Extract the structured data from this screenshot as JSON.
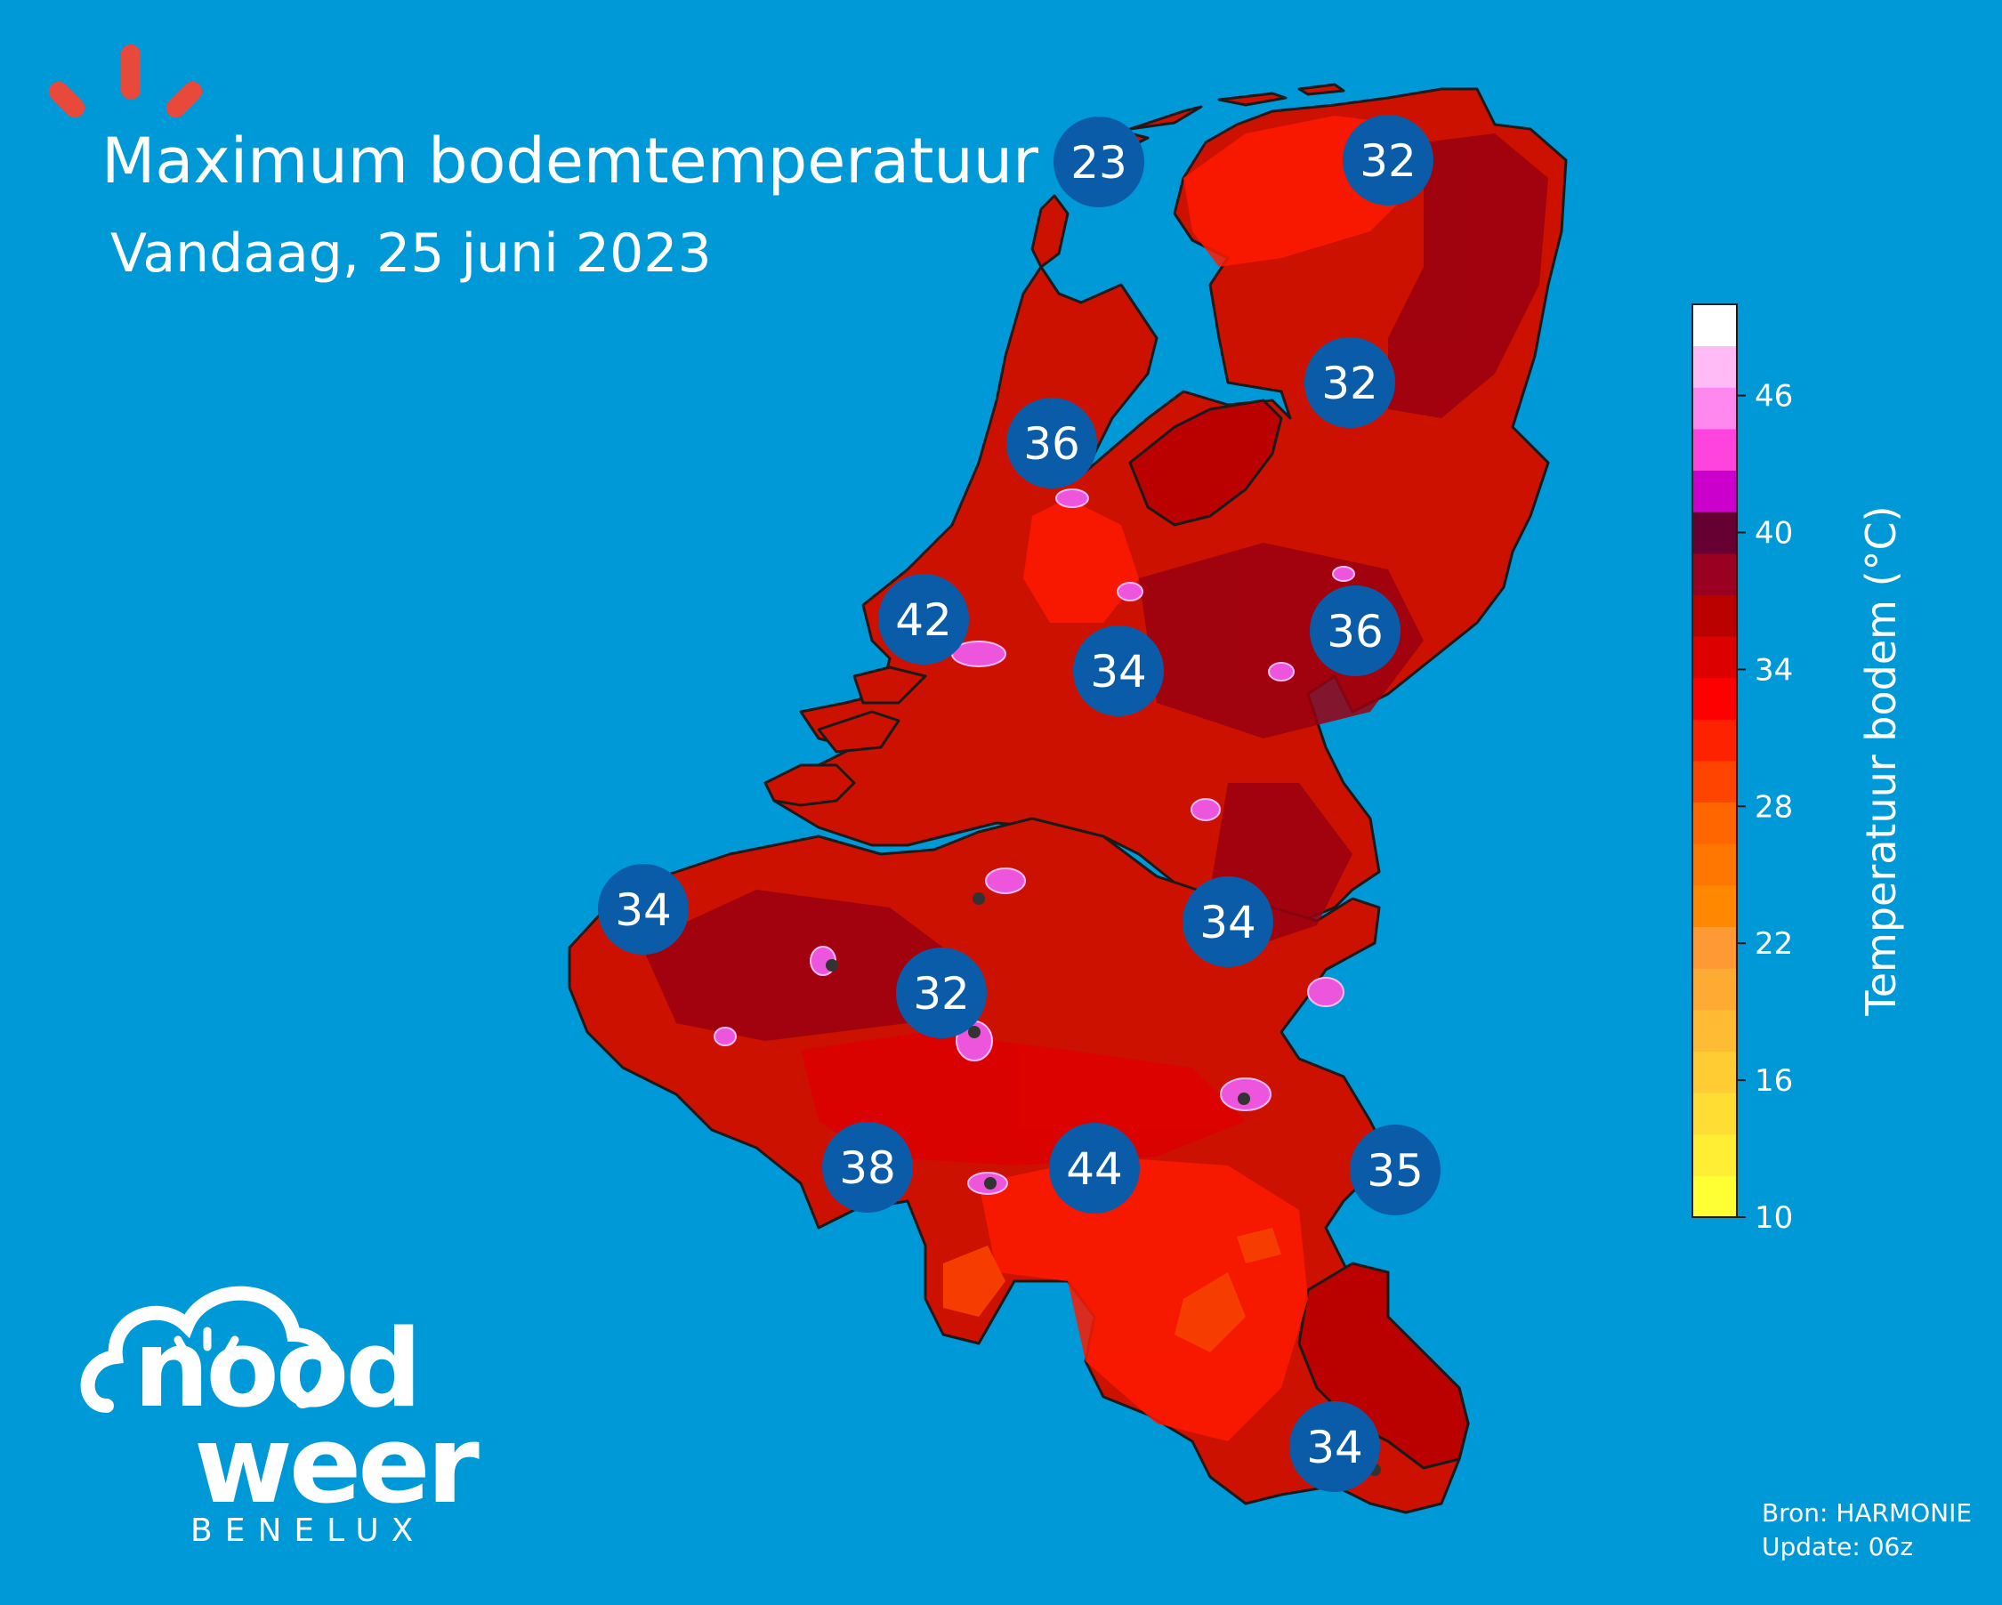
{
  "title": "Maximum bodemtemperatuur",
  "subtitle": "Vandaag, 25 juni 2023",
  "source": {
    "line1": "Bron: HARMONIE",
    "line2": "Update: 06z"
  },
  "logo": {
    "word1": "nood",
    "word2": "weer",
    "word3": "BENELUX"
  },
  "colorbar": {
    "title": "Temperatuur bodem (°C)",
    "min": 10,
    "max": 50,
    "step": 2,
    "ticks": [
      "10",
      "16",
      "22",
      "28",
      "34",
      "40",
      "46"
    ],
    "colors": [
      "#ffff33",
      "#ffee33",
      "#ffdd33",
      "#ffcc33",
      "#ffbb33",
      "#ffaa33",
      "#ff9933",
      "#ff8800",
      "#ff7700",
      "#ff6600",
      "#ff4400",
      "#ff2200",
      "#ff0000",
      "#dd0000",
      "#bb0000",
      "#990022",
      "#660033",
      "#cc00cc",
      "#ff44dd",
      "#ff88ee",
      "#ffbbf5",
      "#ffffff"
    ]
  },
  "map_colors": {
    "sea": "#0099d8",
    "land_main": "#cc1100",
    "land_dark": "#990011",
    "land_bright": "#ff1a00",
    "hot_spot": "#ee55dd",
    "border": "#1a1a1a",
    "badge": "#0a5ca8"
  },
  "badges": [
    "23",
    "32",
    "32",
    "36",
    "42",
    "34",
    "36",
    "34",
    "34",
    "32",
    "38",
    "44",
    "35",
    "34"
  ]
}
